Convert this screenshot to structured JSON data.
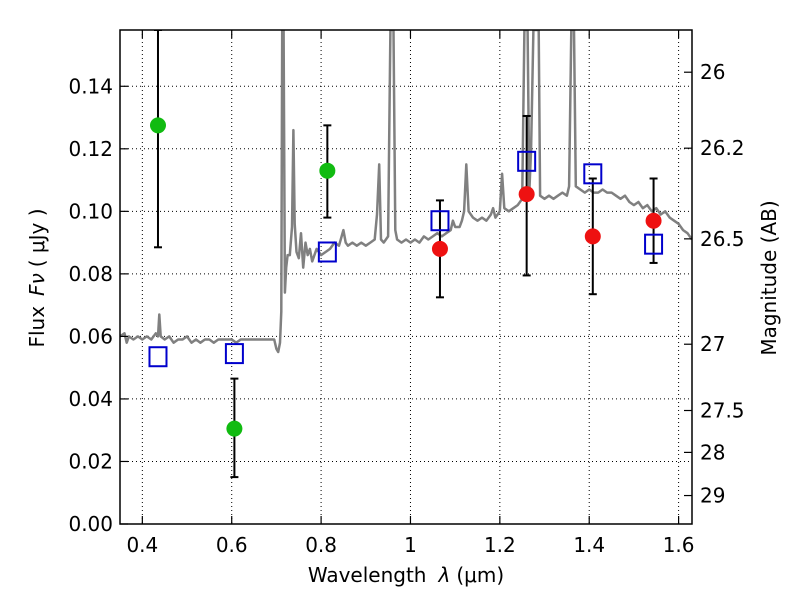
{
  "chart_data": {
    "type": "scatter",
    "title": "",
    "xlabel_prefix": "Wavelength",
    "xlabel_symbol": "λ",
    "xlabel_unit": "(μm)",
    "ylabel_prefix": "Flux",
    "ylabel_symbol": "Fν",
    "ylabel_unit": "( μJy )",
    "y2label": "Magnitude (AB)",
    "xlim": [
      0.35,
      1.63
    ],
    "ylim": [
      0.0,
      0.158
    ],
    "grid": true,
    "x_ticks": [
      0.4,
      0.6,
      0.8,
      1.0,
      1.2,
      1.4,
      1.6
    ],
    "x_tick_labels": [
      "0.4",
      "0.6",
      "0.8",
      "1",
      "1.2",
      "1.4",
      "1.6"
    ],
    "y_ticks": [
      0.0,
      0.02,
      0.04,
      0.06,
      0.08,
      0.1,
      0.12,
      0.14
    ],
    "y_tick_labels": [
      "0.00",
      "0.02",
      "0.04",
      "0.06",
      "0.08",
      "0.10",
      "0.12",
      "0.14"
    ],
    "y2_ticks": [
      {
        "label": "26",
        "flux": 0.1445
      },
      {
        "label": "26.2",
        "flux": 0.1202
      },
      {
        "label": "26.5",
        "flux": 0.0912
      },
      {
        "label": "27",
        "flux": 0.0575
      },
      {
        "label": "27.5",
        "flux": 0.0363
      },
      {
        "label": "28",
        "flux": 0.0229
      },
      {
        "label": "29",
        "flux": 0.0091
      }
    ],
    "colors": {
      "model": "#808080",
      "green": "#11bb11",
      "red": "#ee1111",
      "model_photometry": "#0000cc",
      "errorbar": "#000000"
    },
    "series": [
      {
        "marker": "circle",
        "color": "#11bb11",
        "points": [
          {
            "x": 0.435,
            "y": 0.1275,
            "yerr_low": 0.0885,
            "yerr_high": 0.158
          },
          {
            "x": 0.606,
            "y": 0.0305,
            "yerr_low": 0.015,
            "yerr_high": 0.0465
          },
          {
            "x": 0.814,
            "y": 0.113,
            "yerr_low": 0.098,
            "yerr_high": 0.1275
          }
        ]
      },
      {
        "marker": "circle",
        "color": "#ee1111",
        "points": [
          {
            "x": 1.066,
            "y": 0.088,
            "yerr_low": 0.0725,
            "yerr_high": 0.1035
          },
          {
            "x": 1.26,
            "y": 0.1055,
            "yerr_low": 0.0795,
            "yerr_high": 0.1305
          },
          {
            "x": 1.408,
            "y": 0.092,
            "yerr_low": 0.0735,
            "yerr_high": 0.1105
          },
          {
            "x": 1.544,
            "y": 0.097,
            "yerr_low": 0.0835,
            "yerr_high": 0.1105
          }
        ]
      },
      {
        "marker": "open-square",
        "color": "#0000cc",
        "points": [
          {
            "x": 0.435,
            "y": 0.0535
          },
          {
            "x": 0.606,
            "y": 0.0545
          },
          {
            "x": 0.814,
            "y": 0.087
          },
          {
            "x": 1.066,
            "y": 0.097
          },
          {
            "x": 1.26,
            "y": 0.116
          },
          {
            "x": 1.408,
            "y": 0.112
          },
          {
            "x": 1.544,
            "y": 0.0895
          }
        ]
      }
    ],
    "model_spectrum": [
      [
        0.35,
        0.06
      ],
      [
        0.36,
        0.061
      ],
      [
        0.365,
        0.058
      ],
      [
        0.37,
        0.06
      ],
      [
        0.38,
        0.059
      ],
      [
        0.39,
        0.06
      ],
      [
        0.4,
        0.059
      ],
      [
        0.41,
        0.06
      ],
      [
        0.42,
        0.059
      ],
      [
        0.43,
        0.061
      ],
      [
        0.435,
        0.06
      ],
      [
        0.438,
        0.067
      ],
      [
        0.441,
        0.06
      ],
      [
        0.45,
        0.059
      ],
      [
        0.46,
        0.06
      ],
      [
        0.47,
        0.058
      ],
      [
        0.48,
        0.059
      ],
      [
        0.49,
        0.059
      ],
      [
        0.5,
        0.06
      ],
      [
        0.51,
        0.058
      ],
      [
        0.52,
        0.059
      ],
      [
        0.53,
        0.058
      ],
      [
        0.54,
        0.059
      ],
      [
        0.55,
        0.059
      ],
      [
        0.56,
        0.058
      ],
      [
        0.57,
        0.059
      ],
      [
        0.58,
        0.059
      ],
      [
        0.59,
        0.059
      ],
      [
        0.6,
        0.059
      ],
      [
        0.61,
        0.058
      ],
      [
        0.62,
        0.059
      ],
      [
        0.63,
        0.059
      ],
      [
        0.64,
        0.059
      ],
      [
        0.65,
        0.059
      ],
      [
        0.66,
        0.059
      ],
      [
        0.67,
        0.059
      ],
      [
        0.68,
        0.059
      ],
      [
        0.69,
        0.059
      ],
      [
        0.695,
        0.059
      ],
      [
        0.7,
        0.056
      ],
      [
        0.704,
        0.055
      ],
      [
        0.708,
        0.058
      ],
      [
        0.711,
        0.068
      ],
      [
        0.713,
        0.158
      ],
      [
        0.716,
        0.158
      ],
      [
        0.719,
        0.074
      ],
      [
        0.722,
        0.082
      ],
      [
        0.725,
        0.086
      ],
      [
        0.73,
        0.086
      ],
      [
        0.735,
        0.095
      ],
      [
        0.738,
        0.126
      ],
      [
        0.741,
        0.096
      ],
      [
        0.745,
        0.087
      ],
      [
        0.75,
        0.085
      ],
      [
        0.755,
        0.093
      ],
      [
        0.76,
        0.082
      ],
      [
        0.765,
        0.09
      ],
      [
        0.77,
        0.086
      ],
      [
        0.775,
        0.088
      ],
      [
        0.78,
        0.084
      ],
      [
        0.79,
        0.088
      ],
      [
        0.8,
        0.086
      ],
      [
        0.81,
        0.087
      ],
      [
        0.82,
        0.088
      ],
      [
        0.83,
        0.09
      ],
      [
        0.84,
        0.089
      ],
      [
        0.85,
        0.094
      ],
      [
        0.855,
        0.09
      ],
      [
        0.86,
        0.089
      ],
      [
        0.87,
        0.09
      ],
      [
        0.88,
        0.089
      ],
      [
        0.89,
        0.09
      ],
      [
        0.9,
        0.089
      ],
      [
        0.91,
        0.09
      ],
      [
        0.92,
        0.091
      ],
      [
        0.925,
        0.099
      ],
      [
        0.93,
        0.115
      ],
      [
        0.934,
        0.091
      ],
      [
        0.94,
        0.09
      ],
      [
        0.95,
        0.092
      ],
      [
        0.955,
        0.158
      ],
      [
        0.962,
        0.158
      ],
      [
        0.966,
        0.094
      ],
      [
        0.97,
        0.091
      ],
      [
        0.98,
        0.09
      ],
      [
        0.99,
        0.091
      ],
      [
        1.0,
        0.09
      ],
      [
        1.01,
        0.091
      ],
      [
        1.02,
        0.09
      ],
      [
        1.03,
        0.092
      ],
      [
        1.04,
        0.091
      ],
      [
        1.05,
        0.092
      ],
      [
        1.06,
        0.093
      ],
      [
        1.07,
        0.092
      ],
      [
        1.08,
        0.093
      ],
      [
        1.09,
        0.094
      ],
      [
        1.095,
        0.097
      ],
      [
        1.1,
        0.095
      ],
      [
        1.11,
        0.095
      ],
      [
        1.115,
        0.097
      ],
      [
        1.12,
        0.1
      ],
      [
        1.125,
        0.115
      ],
      [
        1.13,
        0.1
      ],
      [
        1.14,
        0.098
      ],
      [
        1.15,
        0.097
      ],
      [
        1.16,
        0.098
      ],
      [
        1.17,
        0.097
      ],
      [
        1.18,
        0.099
      ],
      [
        1.185,
        0.101
      ],
      [
        1.19,
        0.098
      ],
      [
        1.2,
        0.1
      ],
      [
        1.205,
        0.112
      ],
      [
        1.21,
        0.101
      ],
      [
        1.22,
        0.1
      ],
      [
        1.23,
        0.101
      ],
      [
        1.24,
        0.102
      ],
      [
        1.25,
        0.104
      ],
      [
        1.255,
        0.158
      ],
      [
        1.262,
        0.158
      ],
      [
        1.266,
        0.106
      ],
      [
        1.27,
        0.12
      ],
      [
        1.275,
        0.158
      ],
      [
        1.28,
        0.158
      ],
      [
        1.287,
        0.158
      ],
      [
        1.29,
        0.105
      ],
      [
        1.3,
        0.104
      ],
      [
        1.31,
        0.105
      ],
      [
        1.32,
        0.104
      ],
      [
        1.33,
        0.105
      ],
      [
        1.34,
        0.106
      ],
      [
        1.35,
        0.105
      ],
      [
        1.355,
        0.108
      ],
      [
        1.36,
        0.158
      ],
      [
        1.366,
        0.158
      ],
      [
        1.37,
        0.108
      ],
      [
        1.38,
        0.107
      ],
      [
        1.39,
        0.106
      ],
      [
        1.4,
        0.107
      ],
      [
        1.41,
        0.106
      ],
      [
        1.42,
        0.106
      ],
      [
        1.43,
        0.107
      ],
      [
        1.44,
        0.106
      ],
      [
        1.45,
        0.106
      ],
      [
        1.46,
        0.105
      ],
      [
        1.47,
        0.104
      ],
      [
        1.48,
        0.105
      ],
      [
        1.49,
        0.103
      ],
      [
        1.5,
        0.102
      ],
      [
        1.51,
        0.103
      ],
      [
        1.52,
        0.101
      ],
      [
        1.53,
        0.102
      ],
      [
        1.54,
        0.1
      ],
      [
        1.55,
        0.101
      ],
      [
        1.56,
        0.099
      ],
      [
        1.57,
        0.1
      ],
      [
        1.58,
        0.098
      ],
      [
        1.59,
        0.097
      ],
      [
        1.6,
        0.096
      ],
      [
        1.61,
        0.094
      ],
      [
        1.62,
        0.093
      ],
      [
        1.63,
        0.091
      ]
    ]
  }
}
